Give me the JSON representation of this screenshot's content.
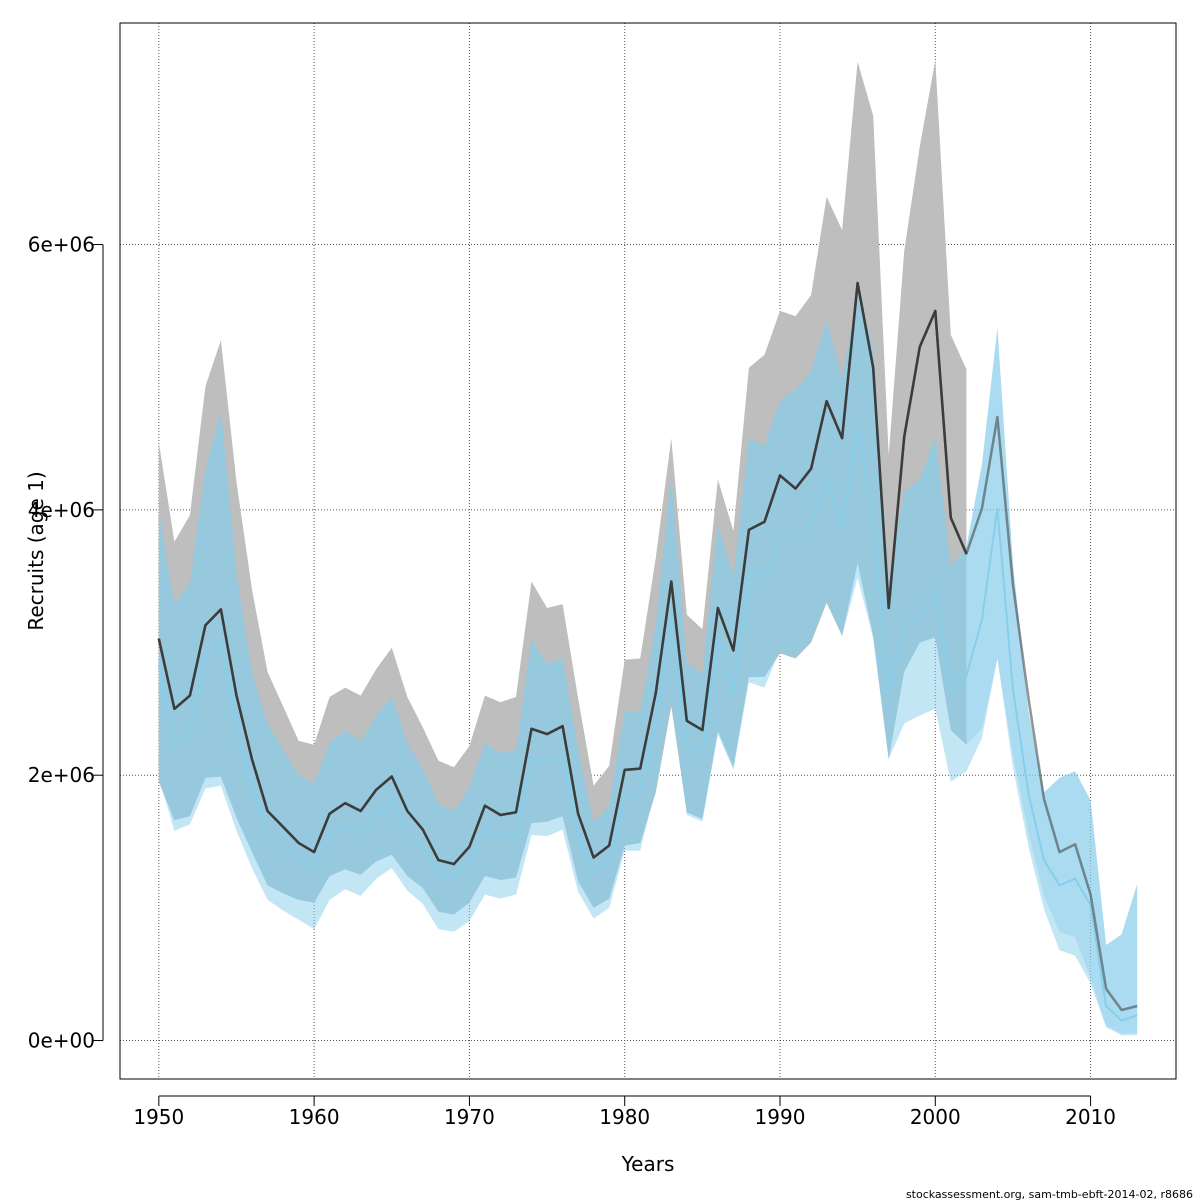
{
  "chart_data": {
    "type": "line",
    "title": "",
    "xlabel": "Years",
    "ylabel": "Recruits (age 1)",
    "xlim": [
      1947.5,
      2015.5
    ],
    "ylim": [
      -290000,
      7670000
    ],
    "x_ticks": [
      1950,
      1960,
      1970,
      1980,
      1990,
      2000,
      2010
    ],
    "x_tick_labels": [
      "1950",
      "1960",
      "1970",
      "1980",
      "1990",
      "2000",
      "2010"
    ],
    "y_ticks": [
      0,
      2000000,
      4000000,
      6000000
    ],
    "y_tick_labels": [
      "0e+00",
      "2e+06",
      "4e+06",
      "6e+06"
    ],
    "grid": true,
    "legend": "none",
    "colors": {
      "dark_band": "#bebebe",
      "dark_line": "#3c3c3c",
      "light_band": "#87ceeb",
      "light_line": "#87ceeb"
    },
    "series": [
      {
        "style": "dark",
        "x": [
          1950,
          1951,
          1952,
          1953,
          1954,
          1955,
          1956,
          1957,
          1958,
          1959,
          1960,
          1961,
          1962,
          1963,
          1964,
          1965,
          1966,
          1967,
          1968,
          1969,
          1970,
          1971,
          1972,
          1973,
          1974,
          1975,
          1976,
          1977,
          1978,
          1979,
          1980,
          1981,
          1982,
          1983,
          1984,
          1985,
          1986,
          1987,
          1988,
          1989,
          1990,
          1991,
          1992,
          1993,
          1994,
          1995,
          1996,
          1997,
          1998,
          1999,
          2000,
          2001,
          2002
        ],
        "estimate": [
          3030000,
          2500000,
          2600000,
          3130000,
          3250000,
          2600000,
          2120000,
          1730000,
          1610000,
          1490000,
          1420000,
          1710000,
          1790000,
          1730000,
          1890000,
          1990000,
          1730000,
          1590000,
          1360000,
          1330000,
          1460000,
          1770000,
          1700000,
          1720000,
          2350000,
          2310000,
          2370000,
          1710000,
          1380000,
          1470000,
          2040000,
          2050000,
          2620000,
          3460000,
          2410000,
          2340000,
          3260000,
          2940000,
          3850000,
          3910000,
          4260000,
          4160000,
          4310000,
          4820000,
          4540000,
          5710000,
          5070000,
          3260000,
          4550000,
          5230000,
          5500000,
          3940000,
          3670000
        ],
        "lower": [
          1950000,
          1660000,
          1690000,
          1980000,
          1990000,
          1680000,
          1420000,
          1170000,
          1110000,
          1060000,
          1040000,
          1240000,
          1290000,
          1250000,
          1350000,
          1400000,
          1240000,
          1150000,
          970000,
          950000,
          1040000,
          1240000,
          1210000,
          1230000,
          1640000,
          1650000,
          1690000,
          1200000,
          1000000,
          1070000,
          1470000,
          1490000,
          1870000,
          2520000,
          1720000,
          1670000,
          2330000,
          2060000,
          2740000,
          2740000,
          2920000,
          2880000,
          3000000,
          3300000,
          3050000,
          3600000,
          3050000,
          2120000,
          2780000,
          3000000,
          3040000,
          2340000,
          2230000
        ],
        "upper": [
          4510000,
          3760000,
          3960000,
          4930000,
          5280000,
          4210000,
          3400000,
          2780000,
          2520000,
          2260000,
          2230000,
          2590000,
          2660000,
          2600000,
          2800000,
          2960000,
          2590000,
          2360000,
          2110000,
          2060000,
          2220000,
          2600000,
          2550000,
          2590000,
          3460000,
          3260000,
          3290000,
          2580000,
          1920000,
          2070000,
          2870000,
          2880000,
          3640000,
          4540000,
          3210000,
          3100000,
          4230000,
          3840000,
          5070000,
          5170000,
          5500000,
          5460000,
          5620000,
          6360000,
          6110000,
          7380000,
          6970000,
          4410000,
          5950000,
          6740000,
          7390000,
          5320000,
          5060000
        ]
      },
      {
        "style": "light",
        "x": [
          1950,
          1951,
          1952,
          1953,
          1954,
          1955,
          1956,
          1957,
          1958,
          1959,
          1960,
          1961,
          1962,
          1963,
          1964,
          1965,
          1966,
          1967,
          1968,
          1969,
          1970,
          1971,
          1972,
          1973,
          1974,
          1975,
          1976,
          1977,
          1978,
          1979,
          1980,
          1981,
          1982,
          1983,
          1984,
          1985,
          1986,
          1987,
          1988,
          1989,
          1990,
          1991,
          1992,
          1993,
          1994,
          1995,
          1996,
          1997,
          1998,
          1999,
          2000,
          2001,
          2002,
          2003,
          2004,
          2005,
          2006,
          2007,
          2008,
          2009,
          2010,
          2011,
          2012,
          2013
        ],
        "estimate": [
          2830000,
          2240000,
          2330000,
          2900000,
          3010000,
          2340000,
          1890000,
          1570000,
          1460000,
          1380000,
          1310000,
          1560000,
          1620000,
          1560000,
          1710000,
          1800000,
          1570000,
          1440000,
          1250000,
          1220000,
          1340000,
          1590000,
          1540000,
          1560000,
          2130000,
          2090000,
          2150000,
          1550000,
          1260000,
          1360000,
          1850000,
          1870000,
          2410000,
          3210000,
          2230000,
          2160000,
          3040000,
          2620000,
          3530000,
          3490000,
          3760000,
          3800000,
          3910000,
          4250000,
          3870000,
          4620000,
          3950000,
          2630000,
          3120000,
          3200000,
          3390000,
          2640000,
          2750000,
          3170000,
          4010000,
          2650000,
          1860000,
          1360000,
          1170000,
          1220000,
          1020000,
          260000,
          150000,
          190000
        ],
        "lower": [
          1980000,
          1580000,
          1630000,
          1900000,
          1920000,
          1580000,
          1300000,
          1060000,
          980000,
          910000,
          840000,
          1060000,
          1140000,
          1090000,
          1220000,
          1300000,
          1130000,
          1030000,
          840000,
          820000,
          900000,
          1100000,
          1070000,
          1100000,
          1550000,
          1540000,
          1590000,
          1120000,
          920000,
          1000000,
          1430000,
          1430000,
          1900000,
          2600000,
          1700000,
          1650000,
          2310000,
          2040000,
          2700000,
          2660000,
          2950000,
          2900000,
          3030000,
          3330000,
          3050000,
          3490000,
          3030000,
          2120000,
          2390000,
          2450000,
          2500000,
          1950000,
          2030000,
          2280000,
          2880000,
          2060000,
          1460000,
          990000,
          680000,
          640000,
          430000,
          100000,
          40000,
          40000
        ],
        "upper": [
          3960000,
          3300000,
          3450000,
          4300000,
          4740000,
          3530000,
          2780000,
          2390000,
          2190000,
          2000000,
          1940000,
          2250000,
          2340000,
          2260000,
          2450000,
          2600000,
          2250000,
          2050000,
          1790000,
          1730000,
          1910000,
          2240000,
          2170000,
          2190000,
          3030000,
          2840000,
          2880000,
          2200000,
          1640000,
          1770000,
          2490000,
          2480000,
          3130000,
          4250000,
          2850000,
          2760000,
          3900000,
          3490000,
          4540000,
          4480000,
          4820000,
          4910000,
          5040000,
          5430000,
          4990000,
          5630000,
          5230000,
          3470000,
          4130000,
          4230000,
          4560000,
          3570000,
          3720000,
          4340000,
          5370000,
          3600000,
          2480000,
          1870000,
          1980000,
          2030000,
          1810000,
          720000,
          800000,
          1180000
        ]
      },
      {
        "style": "mid",
        "x": [
          1950,
          1951,
          1952,
          1953,
          1954,
          1955,
          1956,
          1957,
          1958,
          1959,
          1960,
          1961,
          1962,
          1963,
          1964,
          1965,
          1966,
          1967,
          1968,
          1969,
          1970,
          1971,
          1972,
          1973,
          1974,
          1975,
          1976,
          1977,
          1978,
          1979,
          1980,
          1981,
          1982,
          1983,
          1984,
          1985,
          1986,
          1987,
          1988,
          1989,
          1990,
          1991,
          1992,
          1993,
          1994,
          1995,
          1996,
          1997,
          1998,
          1999,
          2000,
          2001,
          2002,
          2003,
          2004,
          2005,
          2006,
          2007,
          2008,
          2009,
          2010,
          2011,
          2012,
          2013
        ],
        "estimate": [
          3030000,
          2500000,
          2600000,
          3130000,
          3250000,
          2600000,
          2120000,
          1730000,
          1610000,
          1490000,
          1420000,
          1710000,
          1790000,
          1730000,
          1890000,
          1990000,
          1730000,
          1590000,
          1360000,
          1330000,
          1460000,
          1770000,
          1700000,
          1720000,
          2350000,
          2310000,
          2370000,
          1710000,
          1380000,
          1470000,
          2040000,
          2050000,
          2620000,
          3460000,
          2410000,
          2340000,
          3260000,
          2940000,
          3850000,
          3910000,
          4260000,
          4160000,
          4310000,
          4820000,
          4540000,
          5710000,
          5070000,
          3260000,
          4550000,
          5230000,
          5500000,
          3940000,
          3670000,
          4010000,
          4700000,
          3440000,
          2580000,
          1820000,
          1420000,
          1480000,
          1100000,
          390000,
          230000,
          260000
        ],
        "lower": [
          1950000,
          1660000,
          1690000,
          1980000,
          1990000,
          1680000,
          1420000,
          1170000,
          1110000,
          1060000,
          1040000,
          1240000,
          1290000,
          1250000,
          1350000,
          1400000,
          1240000,
          1150000,
          970000,
          950000,
          1040000,
          1240000,
          1210000,
          1230000,
          1640000,
          1650000,
          1690000,
          1200000,
          1000000,
          1070000,
          1470000,
          1490000,
          1870000,
          2520000,
          1720000,
          1670000,
          2330000,
          2060000,
          2740000,
          2740000,
          2920000,
          2880000,
          3000000,
          3300000,
          3050000,
          3600000,
          3050000,
          2120000,
          2780000,
          3000000,
          3040000,
          2340000,
          2230000,
          2350000,
          2880000,
          2150000,
          1560000,
          1090000,
          820000,
          780000,
          470000,
          110000,
          50000,
          60000
        ],
        "upper": [
          4010000,
          3270000,
          3440000,
          4290000,
          4740000,
          3530000,
          2760000,
          2390000,
          2190000,
          2000000,
          1930000,
          2240000,
          2330000,
          2250000,
          2440000,
          2590000,
          2240000,
          2040000,
          1780000,
          1720000,
          1900000,
          2240000,
          2160000,
          2190000,
          3020000,
          2840000,
          2880000,
          2190000,
          1640000,
          1770000,
          2480000,
          2470000,
          3130000,
          4250000,
          2850000,
          2760000,
          3900000,
          3490000,
          4540000,
          4480000,
          4820000,
          4910000,
          5040000,
          5430000,
          4990000,
          5630000,
          5230000,
          3470000,
          4130000,
          4230000,
          4560000,
          3570000,
          3720000,
          4340000,
          5370000,
          3600000,
          2480000,
          1870000,
          1980000,
          2030000,
          1810000,
          720000,
          800000,
          1180000
        ]
      }
    ],
    "footer": "stockassessment.org, sam-tmb-ebft-2014-02, r8686"
  }
}
